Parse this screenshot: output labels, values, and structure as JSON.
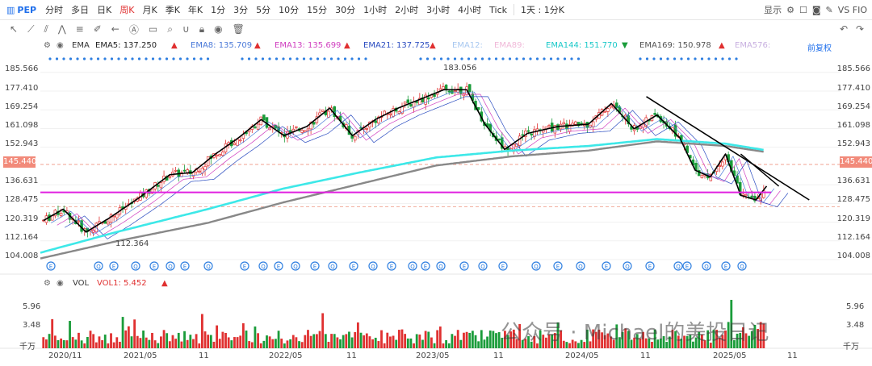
{
  "symbol": "PEP",
  "periods": [
    "分时",
    "多日",
    "日K",
    "周K",
    "月K",
    "季K",
    "年K",
    "1分",
    "3分",
    "5分",
    "10分",
    "15分",
    "30分",
    "1小时",
    "2小时",
    "3小时",
    "4小时",
    "Tick",
    "1天 : 1分K"
  ],
  "active_period": "周K",
  "right_tools": {
    "display": "显示",
    "compare": "VS FIO"
  },
  "ema_labels": {
    "ema_btn": "EMA",
    "ema5": "EMA5: 137.250",
    "ema8": "EMA8: 135.709",
    "ema13": "EMA13: 135.699",
    "ema21": "EMA21: 137.725",
    "ema12": "EMA12:",
    "ema89": "EMA89:",
    "ema144": "EMA144: 151.770",
    "ema169": "EMA169: 150.978",
    "ema576": "EMA576:",
    "adjust": "前复权"
  },
  "y_ticks": [
    "185.566",
    "177.410",
    "169.254",
    "161.098",
    "152.943",
    "145.440",
    "136.631",
    "128.475",
    "120.319",
    "112.164",
    "104.008"
  ],
  "price_badge": "145.440",
  "high_label": "183.056",
  "low_label": "112.364",
  "vol_header": {
    "name": "VOL",
    "value": "VOL1: 5.452"
  },
  "vol_ticks": [
    "5.96",
    "3.48",
    "千万"
  ],
  "x_labels": [
    "2020/11",
    "2021/05",
    "11",
    "2022/05",
    "11",
    "2023/05",
    "11",
    "2024/05",
    "11",
    "2025/05",
    "11"
  ],
  "watermark": "公众号 · Michael的美投日记",
  "colors": {
    "up": "#e03030",
    "down": "#1a9c3a",
    "ema144": "#3de8e8",
    "ema169": "#888888",
    "support": "#e020e0",
    "trend": "#000000",
    "accent": "#1f6feb"
  },
  "chart_data": {
    "type": "candlestick",
    "title": "PEP 周K",
    "ylim": [
      104.008,
      189
    ],
    "x_range": [
      "2020/09",
      "2025/06"
    ],
    "support_level": 133.3,
    "current_price_line": 145.44,
    "high": {
      "date": "2023/04",
      "value": 183.056
    },
    "low": {
      "date": "2020/12",
      "value": 112.364
    },
    "ema144": [
      [
        2020.7,
        107
      ],
      [
        2021.2,
        116
      ],
      [
        2021.8,
        126
      ],
      [
        2022.3,
        135
      ],
      [
        2022.8,
        142
      ],
      [
        2023.3,
        148.5
      ],
      [
        2023.8,
        151.5
      ],
      [
        2024.3,
        153.5
      ],
      [
        2024.75,
        156.5
      ],
      [
        2025.2,
        154.5
      ],
      [
        2025.45,
        151.8
      ]
    ],
    "ema169": [
      [
        2020.7,
        104.5
      ],
      [
        2021.2,
        112
      ],
      [
        2021.8,
        120
      ],
      [
        2022.3,
        129
      ],
      [
        2022.8,
        137
      ],
      [
        2023.3,
        145
      ],
      [
        2023.8,
        149
      ],
      [
        2024.3,
        151.5
      ],
      [
        2024.75,
        155.5
      ],
      [
        2025.2,
        153.5
      ],
      [
        2025.45,
        151.0
      ]
    ],
    "ema5_path": [
      [
        2020.72,
        121
      ],
      [
        2020.85,
        126
      ],
      [
        2021.0,
        116
      ],
      [
        2021.15,
        122
      ],
      [
        2021.35,
        131
      ],
      [
        2021.55,
        141
      ],
      [
        2021.7,
        142
      ],
      [
        2021.85,
        150
      ],
      [
        2022.0,
        157
      ],
      [
        2022.15,
        165
      ],
      [
        2022.3,
        158
      ],
      [
        2022.45,
        162
      ],
      [
        2022.6,
        170
      ],
      [
        2022.75,
        158
      ],
      [
        2022.9,
        165
      ],
      [
        2023.05,
        170
      ],
      [
        2023.2,
        174
      ],
      [
        2023.35,
        178
      ],
      [
        2023.5,
        178
      ],
      [
        2023.62,
        163
      ],
      [
        2023.75,
        152
      ],
      [
        2023.9,
        159
      ],
      [
        2024.1,
        162
      ],
      [
        2024.3,
        163
      ],
      [
        2024.45,
        172
      ],
      [
        2024.6,
        161
      ],
      [
        2024.75,
        167
      ],
      [
        2024.9,
        157
      ],
      [
        2025.0,
        143
      ],
      [
        2025.1,
        140
      ],
      [
        2025.2,
        150
      ],
      [
        2025.3,
        132
      ],
      [
        2025.4,
        130
      ],
      [
        2025.47,
        136
      ]
    ],
    "trendline": [
      [
        2024.68,
        175
      ],
      [
        2025.75,
        130
      ]
    ]
  }
}
